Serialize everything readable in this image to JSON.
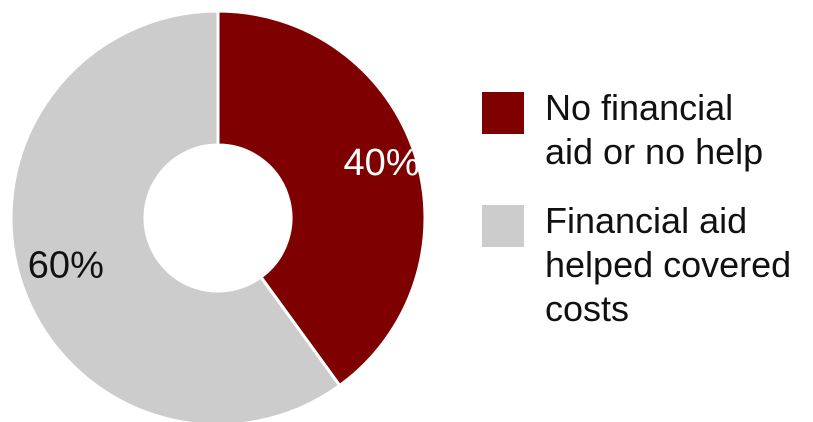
{
  "chart_data": {
    "type": "pie",
    "subtype": "donut",
    "title": "",
    "categories": [
      "No financial aid or no help",
      "Financial aid helped covered costs"
    ],
    "values": [
      40,
      60
    ],
    "labels": [
      "40%",
      "60%"
    ],
    "colors": [
      "#7f0000",
      "#cccccc"
    ],
    "label_colors": [
      "#ffffff",
      "#111111"
    ],
    "legend_placement": "right",
    "legend": [
      {
        "line1": "No financial",
        "line2": "aid or no help",
        "line3": ""
      },
      {
        "line1": "Financial aid",
        "line2": "helped covered",
        "line3": "costs"
      }
    ]
  }
}
